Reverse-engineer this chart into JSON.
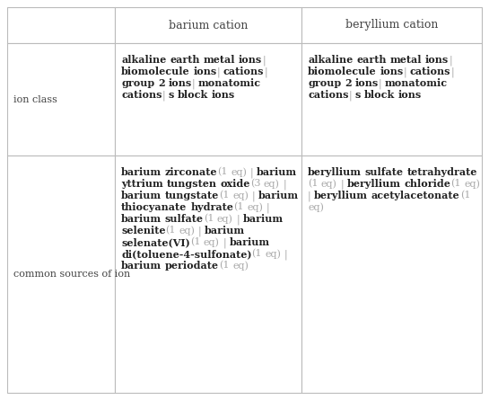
{
  "col_headers": [
    "",
    "barium cation",
    "beryllium cation"
  ],
  "row_labels": [
    "ion class",
    "common sources of ion"
  ],
  "bg_color": "#ffffff",
  "header_text_color": "#444444",
  "bold_text_color": "#222222",
  "gray_text_color": "#aaaaaa",
  "row_label_color": "#444444",
  "grid_color": "#bbbbbb",
  "font_size": 8.0,
  "header_font_size": 9.0,
  "ion_class_segments": [
    {
      "text": "alkaline earth metal ions",
      "bold": true
    },
    {
      "text": " | ",
      "bold": false
    },
    {
      "text": "biomolecule ions",
      "bold": true
    },
    {
      "text": " | ",
      "bold": false
    },
    {
      "text": "cations",
      "bold": true
    },
    {
      "text": " | ",
      "bold": false
    },
    {
      "text": "group 2 ions",
      "bold": true
    },
    {
      "text": " | ",
      "bold": false
    },
    {
      "text": "monatomic cations",
      "bold": true
    },
    {
      "text": " | ",
      "bold": false
    },
    {
      "text": "s block ions",
      "bold": true
    }
  ],
  "sources_barium_segments": [
    {
      "text": "barium zirconate",
      "bold": true
    },
    {
      "text": " (1 eq) | ",
      "bold": false
    },
    {
      "text": "barium yttrium tungsten oxide",
      "bold": true
    },
    {
      "text": " (3 eq) | ",
      "bold": false
    },
    {
      "text": "barium tungstate",
      "bold": true
    },
    {
      "text": " (1 eq) | ",
      "bold": false
    },
    {
      "text": "barium thiocyanate hydrate",
      "bold": true
    },
    {
      "text": " (1 eq) | ",
      "bold": false
    },
    {
      "text": "barium sulfate",
      "bold": true
    },
    {
      "text": " (1 eq) | ",
      "bold": false
    },
    {
      "text": "barium selenite",
      "bold": true
    },
    {
      "text": " (1 eq) | ",
      "bold": false
    },
    {
      "text": "barium selenate(VI)",
      "bold": true
    },
    {
      "text": " (1 eq) | ",
      "bold": false
    },
    {
      "text": "barium di(toluene-4-sulfonate)",
      "bold": true
    },
    {
      "text": " (1 eq) | ",
      "bold": false
    },
    {
      "text": "barium periodate",
      "bold": true
    },
    {
      "text": " (1 eq)",
      "bold": false
    }
  ],
  "sources_beryllium_segments": [
    {
      "text": "beryllium sulfate tetrahydrate",
      "bold": true
    },
    {
      "text": " (1 eq) | ",
      "bold": false
    },
    {
      "text": "beryllium chloride",
      "bold": true
    },
    {
      "text": " (1 eq) | ",
      "bold": false
    },
    {
      "text": "beryllium acetylacetonate",
      "bold": true
    },
    {
      "text": " (1 eq)",
      "bold": false
    }
  ]
}
